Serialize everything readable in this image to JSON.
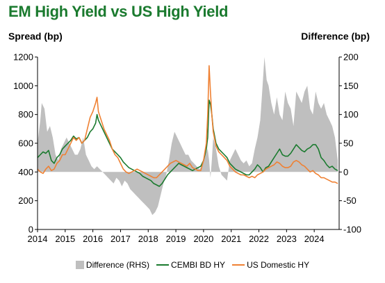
{
  "chart_data": {
    "type": "line",
    "title": "EM High Yield vs US High Yield",
    "ylabel_left": "Spread (bp)",
    "ylabel_right": "Difference (bp)",
    "ylim_left": [
      0,
      1200
    ],
    "ylim_right": [
      -100,
      200
    ],
    "yticks_left": [
      0,
      200,
      400,
      600,
      800,
      1000,
      1200
    ],
    "yticks_right": [
      -100,
      -50,
      0,
      50,
      100,
      150,
      200
    ],
    "xlim": [
      2014,
      2024.9
    ],
    "xticks": [
      2014,
      2015,
      2016,
      2017,
      2018,
      2019,
      2020,
      2021,
      2022,
      2023,
      2024
    ],
    "grid": false,
    "legend_position": "bottom",
    "colors": {
      "difference": "#bfbfbf",
      "cembi": "#1a7a2e",
      "us": "#ef8133"
    },
    "series": [
      {
        "name": "Difference (RHS)",
        "type": "area",
        "axis": "right",
        "x": [
          2014.0,
          2014.1,
          2014.15,
          2014.25,
          2014.35,
          2014.45,
          2014.55,
          2014.65,
          2014.75,
          2014.85,
          2014.95,
          2015.05,
          2015.15,
          2015.25,
          2015.35,
          2015.45,
          2015.55,
          2015.65,
          2015.75,
          2015.85,
          2015.95,
          2016.05,
          2016.15,
          2016.25,
          2016.35,
          2016.45,
          2016.55,
          2016.65,
          2016.75,
          2016.85,
          2016.95,
          2017.05,
          2017.15,
          2017.25,
          2017.35,
          2017.45,
          2017.55,
          2017.65,
          2017.75,
          2017.85,
          2017.95,
          2018.05,
          2018.15,
          2018.25,
          2018.35,
          2018.45,
          2018.55,
          2018.65,
          2018.75,
          2018.85,
          2018.95,
          2019.05,
          2019.15,
          2019.25,
          2019.35,
          2019.45,
          2019.55,
          2019.65,
          2019.75,
          2019.85,
          2019.95,
          2020.05,
          2020.15,
          2020.2,
          2020.25,
          2020.3,
          2020.35,
          2020.45,
          2020.55,
          2020.65,
          2020.75,
          2020.85,
          2020.95,
          2021.05,
          2021.15,
          2021.25,
          2021.35,
          2021.45,
          2021.55,
          2021.65,
          2021.75,
          2021.85,
          2021.95,
          2022.05,
          2022.12,
          2022.2,
          2022.28,
          2022.35,
          2022.45,
          2022.55,
          2022.65,
          2022.75,
          2022.85,
          2022.95,
          2023.05,
          2023.15,
          2023.25,
          2023.35,
          2023.45,
          2023.55,
          2023.65,
          2023.75,
          2023.85,
          2023.95,
          2024.05,
          2024.15,
          2024.25,
          2024.35,
          2024.45,
          2024.55,
          2024.65,
          2024.75,
          2024.85
        ],
        "values": [
          50,
          90,
          120,
          110,
          70,
          80,
          60,
          30,
          20,
          40,
          50,
          60,
          50,
          40,
          30,
          30,
          40,
          60,
          30,
          20,
          10,
          5,
          10,
          5,
          0,
          -5,
          -10,
          -15,
          -20,
          -10,
          -15,
          -25,
          -15,
          -20,
          -30,
          -35,
          -40,
          -45,
          -50,
          -55,
          -60,
          -65,
          -75,
          -70,
          -60,
          -40,
          -20,
          -5,
          20,
          50,
          70,
          60,
          50,
          40,
          30,
          30,
          20,
          15,
          10,
          5,
          10,
          30,
          40,
          20,
          -10,
          20,
          60,
          40,
          10,
          -5,
          -10,
          -15,
          20,
          30,
          40,
          30,
          20,
          15,
          20,
          10,
          15,
          40,
          60,
          90,
          140,
          200,
          160,
          150,
          120,
          100,
          130,
          100,
          90,
          140,
          120,
          110,
          80,
          140,
          130,
          120,
          140,
          150,
          110,
          100,
          140,
          120,
          110,
          120,
          100,
          90,
          80,
          60,
          20
        ]
      },
      {
        "name": "CEMBI BD HY",
        "type": "line",
        "axis": "left",
        "x": [
          2014.0,
          2014.1,
          2014.2,
          2014.3,
          2014.4,
          2014.5,
          2014.6,
          2014.7,
          2014.8,
          2014.9,
          2015.0,
          2015.1,
          2015.2,
          2015.3,
          2015.4,
          2015.5,
          2015.6,
          2015.7,
          2015.8,
          2015.9,
          2016.0,
          2016.1,
          2016.15,
          2016.2,
          2016.3,
          2016.4,
          2016.5,
          2016.6,
          2016.7,
          2016.8,
          2016.9,
          2017.0,
          2017.1,
          2017.2,
          2017.3,
          2017.4,
          2017.5,
          2017.6,
          2017.7,
          2017.8,
          2017.9,
          2018.0,
          2018.1,
          2018.2,
          2018.3,
          2018.4,
          2018.5,
          2018.6,
          2018.7,
          2018.8,
          2018.9,
          2019.0,
          2019.1,
          2019.2,
          2019.3,
          2019.4,
          2019.5,
          2019.6,
          2019.7,
          2019.8,
          2019.9,
          2020.0,
          2020.1,
          2020.15,
          2020.2,
          2020.25,
          2020.3,
          2020.35,
          2020.45,
          2020.55,
          2020.65,
          2020.75,
          2020.85,
          2020.95,
          2021.05,
          2021.15,
          2021.25,
          2021.35,
          2021.45,
          2021.55,
          2021.65,
          2021.75,
          2021.85,
          2021.95,
          2022.05,
          2022.15,
          2022.25,
          2022.35,
          2022.45,
          2022.55,
          2022.65,
          2022.75,
          2022.85,
          2022.95,
          2023.05,
          2023.15,
          2023.25,
          2023.35,
          2023.45,
          2023.55,
          2023.65,
          2023.75,
          2023.85,
          2023.95,
          2024.05,
          2024.15,
          2024.25,
          2024.35,
          2024.45,
          2024.55,
          2024.65,
          2024.75,
          2024.85
        ],
        "values": [
          500,
          520,
          540,
          530,
          550,
          480,
          460,
          500,
          520,
          560,
          580,
          600,
          620,
          650,
          630,
          640,
          600,
          620,
          640,
          680,
          700,
          740,
          800,
          760,
          720,
          680,
          640,
          600,
          560,
          540,
          520,
          500,
          470,
          450,
          430,
          420,
          410,
          400,
          390,
          370,
          360,
          350,
          340,
          320,
          310,
          300,
          320,
          350,
          380,
          400,
          420,
          440,
          460,
          450,
          440,
          430,
          420,
          410,
          420,
          430,
          440,
          480,
          560,
          640,
          900,
          870,
          800,
          700,
          600,
          560,
          540,
          520,
          500,
          460,
          440,
          420,
          410,
          400,
          390,
          380,
          380,
          400,
          420,
          450,
          430,
          400,
          430,
          440,
          470,
          500,
          530,
          560,
          520,
          510,
          510,
          530,
          560,
          590,
          570,
          550,
          540,
          560,
          570,
          590,
          590,
          560,
          500,
          480,
          450,
          430,
          440,
          420,
          410
        ]
      },
      {
        "name": "US Domestic HY",
        "type": "line",
        "axis": "left",
        "x": [
          2014.0,
          2014.1,
          2014.2,
          2014.3,
          2014.4,
          2014.5,
          2014.6,
          2014.7,
          2014.8,
          2014.9,
          2015.0,
          2015.1,
          2015.2,
          2015.3,
          2015.4,
          2015.5,
          2015.6,
          2015.7,
          2015.8,
          2015.9,
          2016.0,
          2016.1,
          2016.15,
          2016.2,
          2016.3,
          2016.4,
          2016.5,
          2016.6,
          2016.7,
          2016.8,
          2016.9,
          2017.0,
          2017.1,
          2017.2,
          2017.3,
          2017.4,
          2017.5,
          2017.6,
          2017.7,
          2017.8,
          2017.9,
          2018.0,
          2018.1,
          2018.2,
          2018.3,
          2018.4,
          2018.5,
          2018.6,
          2018.7,
          2018.8,
          2018.9,
          2019.0,
          2019.1,
          2019.2,
          2019.3,
          2019.4,
          2019.5,
          2019.6,
          2019.7,
          2019.8,
          2019.9,
          2020.0,
          2020.1,
          2020.15,
          2020.2,
          2020.25,
          2020.3,
          2020.35,
          2020.45,
          2020.55,
          2020.65,
          2020.75,
          2020.85,
          2020.95,
          2021.05,
          2021.15,
          2021.25,
          2021.35,
          2021.45,
          2021.55,
          2021.65,
          2021.75,
          2021.85,
          2021.95,
          2022.05,
          2022.15,
          2022.25,
          2022.35,
          2022.45,
          2022.55,
          2022.65,
          2022.75,
          2022.85,
          2022.95,
          2023.05,
          2023.15,
          2023.25,
          2023.35,
          2023.45,
          2023.55,
          2023.65,
          2023.75,
          2023.85,
          2023.95,
          2024.05,
          2024.15,
          2024.25,
          2024.35,
          2024.45,
          2024.55,
          2024.65,
          2024.75,
          2024.85
        ],
        "values": [
          420,
          400,
          390,
          420,
          440,
          410,
          420,
          460,
          480,
          520,
          520,
          560,
          600,
          640,
          620,
          640,
          600,
          620,
          700,
          780,
          820,
          880,
          920,
          820,
          760,
          700,
          660,
          620,
          560,
          520,
          500,
          460,
          420,
          400,
          390,
          400,
          410,
          420,
          410,
          400,
          390,
          380,
          370,
          360,
          360,
          380,
          400,
          420,
          440,
          460,
          470,
          480,
          470,
          460,
          450,
          440,
          460,
          430,
          420,
          410,
          410,
          480,
          600,
          800,
          1140,
          950,
          800,
          680,
          580,
          540,
          520,
          500,
          480,
          440,
          420,
          400,
          390,
          380,
          380,
          370,
          360,
          370,
          360,
          380,
          390,
          400,
          420,
          430,
          440,
          450,
          470,
          460,
          440,
          430,
          430,
          440,
          470,
          480,
          470,
          450,
          440,
          420,
          400,
          410,
          390,
          380,
          360,
          360,
          350,
          340,
          330,
          330,
          320
        ]
      }
    ]
  }
}
